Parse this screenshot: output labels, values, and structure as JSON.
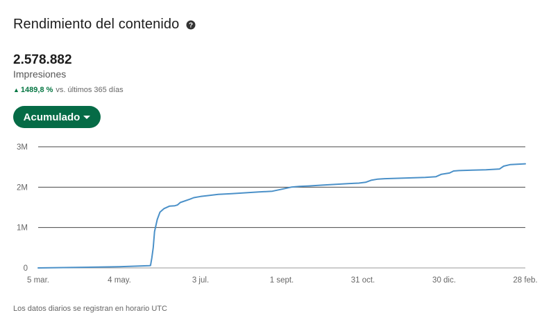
{
  "header": {
    "title": "Rendimiento del contenido",
    "help_icon": "question-circle-icon"
  },
  "metric": {
    "value": "2.578.882",
    "label": "Impresiones",
    "change_value": "1489,8 %",
    "change_text": "vs. últimos 365 días",
    "change_color": "#057642"
  },
  "dropdown": {
    "label": "Acumulado",
    "color": "#056b46"
  },
  "chart_data": {
    "type": "line",
    "x_tick_labels": [
      "5 mar.",
      "4 may.",
      "3 jul.",
      "1 sept.",
      "31 oct.",
      "30 dic.",
      "28 feb."
    ],
    "y_tick_labels": [
      "0",
      "1M",
      "2M",
      "3M"
    ],
    "ylim": [
      0,
      3000000
    ],
    "grid": true,
    "line_color": "#4a90c8",
    "series": [
      {
        "x": [
          "5 mar.",
          "4 may.",
          "26 may.",
          "27 may.",
          "28 may.",
          "29 may.",
          "30 may.",
          "1 jun.",
          "3 jun.",
          "6 jun.",
          "10 jun.",
          "14 jun.",
          "16 jun.",
          "18 jun.",
          "25 jun.",
          "28 jun.",
          "3 jul.",
          "8 jul.",
          "16 jul.",
          "26 jul.",
          "5 ago.",
          "15 ago.",
          "25 ago.",
          "1 sept.",
          "8 sept.",
          "14 sept.",
          "21 sept.",
          "1 oct.",
          "11 oct.",
          "21 oct.",
          "28 oct.",
          "2 nov.",
          "6 nov.",
          "11 nov.",
          "16 nov.",
          "26 nov.",
          "6 dic.",
          "16 dic.",
          "24 dic.",
          "28 dic.",
          "1 ene.",
          "3 ene.",
          "6 ene.",
          "10 ene.",
          "20 ene.",
          "30 ene.",
          "9 feb.",
          "12 feb.",
          "17 feb.",
          "28 feb."
        ],
        "y": [
          0,
          30000,
          55000,
          60000,
          250000,
          500000,
          900000,
          1200000,
          1380000,
          1470000,
          1530000,
          1540000,
          1560000,
          1620000,
          1700000,
          1740000,
          1770000,
          1790000,
          1820000,
          1840000,
          1860000,
          1880000,
          1900000,
          1950000,
          2000000,
          2020000,
          2030000,
          2050000,
          2070000,
          2090000,
          2100000,
          2120000,
          2170000,
          2200000,
          2210000,
          2220000,
          2230000,
          2240000,
          2260000,
          2320000,
          2340000,
          2350000,
          2400000,
          2410000,
          2420000,
          2430000,
          2450000,
          2520000,
          2560000,
          2578882
        ]
      }
    ]
  },
  "footer": {
    "note": "Los datos diarios se registran en horario UTC"
  }
}
